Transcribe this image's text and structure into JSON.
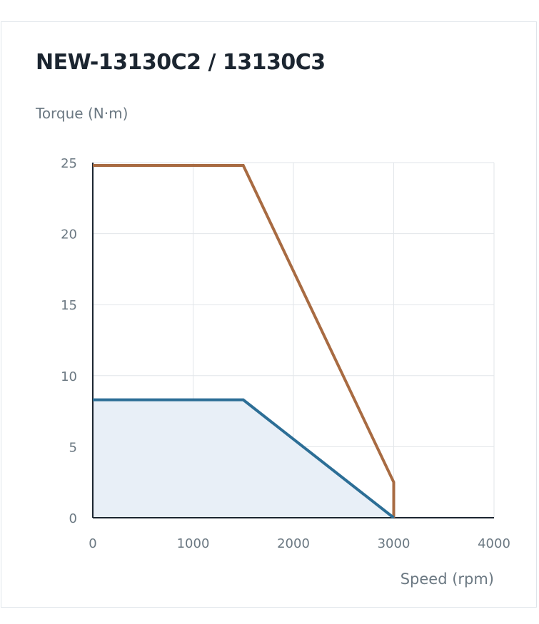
{
  "chart_data": {
    "type": "line",
    "title": "NEW-13130C2 / 13130C3",
    "ylabel": "Torque (N·m)",
    "xlabel": "Speed (rpm)",
    "xlim": [
      0,
      4000
    ],
    "ylim": [
      0,
      25
    ],
    "x_ticks": [
      "0",
      "1000",
      "2000",
      "3000",
      "4000"
    ],
    "y_ticks": [
      "0",
      "5",
      "10",
      "15",
      "20",
      "25"
    ],
    "grid": true,
    "series": [
      {
        "x": [
          0,
          1500,
          3000,
          3000
        ],
        "y": [
          24.8,
          24.8,
          2.5,
          0
        ],
        "color": "#a86b42",
        "filled": false
      },
      {
        "x": [
          0,
          1500,
          3000
        ],
        "y": [
          8.3,
          8.3,
          0
        ],
        "color": "#2c6e96",
        "filled": true,
        "fill_color": "#e8eff7"
      }
    ]
  }
}
